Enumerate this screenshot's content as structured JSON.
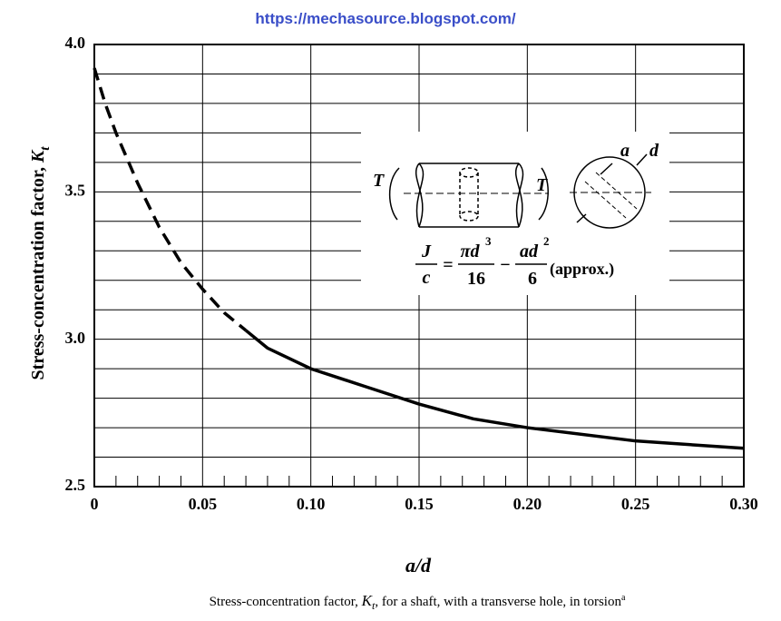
{
  "chart_data": {
    "type": "line",
    "url": "https://mechasource.blogspot.com/",
    "xlabel": "a/d",
    "ylabel": {
      "text": "Stress-concentration factor, ",
      "symbol": "K",
      "subscript": "t"
    },
    "caption": {
      "text": "Stress-concentration factor, ",
      "symbol": "K",
      "subscript": "t",
      "rest": ", for a shaft, with a transverse hole, in torsion",
      "note": "a"
    },
    "xlim": [
      0,
      0.3
    ],
    "ylim": [
      2.5,
      4.0
    ],
    "xticks": [
      0,
      0.05,
      {
        "value": 0.1,
        "label": "0.10"
      },
      0.15,
      {
        "value": 0.2,
        "label": "0.20"
      },
      0.25,
      {
        "value": 0.3,
        "label": "0.30"
      }
    ],
    "yticks": [
      {
        "value": 2.5,
        "label": "2.5"
      },
      {
        "value": 3.0,
        "label": "3.0"
      },
      {
        "value": 3.5,
        "label": "3.5"
      },
      {
        "value": 4.0,
        "label": "4.0"
      }
    ],
    "ygrid": [
      2.6,
      2.7,
      2.8,
      2.9,
      3.1,
      3.2,
      3.3,
      3.4,
      3.6,
      3.7,
      3.8,
      3.9
    ],
    "xminor": [
      0.01,
      0.02,
      0.03,
      0.04,
      0.06,
      0.07,
      0.08,
      0.09,
      0.11,
      0.12,
      0.13,
      0.14,
      0.16,
      0.17,
      0.18,
      0.19,
      0.21,
      0.22,
      0.23,
      0.24,
      0.26,
      0.27,
      0.28,
      0.29
    ],
    "grid": true,
    "series": [
      {
        "color": "#000000",
        "dash": true,
        "x": [
          0,
          0.005,
          0.01,
          0.02,
          0.03,
          0.04,
          0.05,
          0.06,
          0.07
        ],
        "values": [
          3.92,
          3.8,
          3.7,
          3.53,
          3.38,
          3.26,
          3.17,
          3.09,
          3.03
        ]
      },
      {
        "color": "#000000",
        "dash": false,
        "x": [
          0.07,
          0.08,
          0.1,
          0.125,
          0.15,
          0.175,
          0.2,
          0.25,
          0.3
        ],
        "values": [
          3.03,
          2.97,
          2.9,
          2.84,
          2.78,
          2.73,
          2.7,
          2.655,
          2.63
        ]
      }
    ],
    "inset": {
      "torque_left": "T",
      "torque_right": "T",
      "hole": "a",
      "diameter": "d",
      "formula": {
        "lhs_num": "J",
        "lhs_den": "c",
        "eq": "=",
        "t1_num": "πd",
        "t1_exp": "3",
        "t1_den": "16",
        "minus": "−",
        "t2_num": "ad",
        "t2_exp": "2",
        "t2_den": "6",
        "note": "(approx.)"
      }
    }
  }
}
